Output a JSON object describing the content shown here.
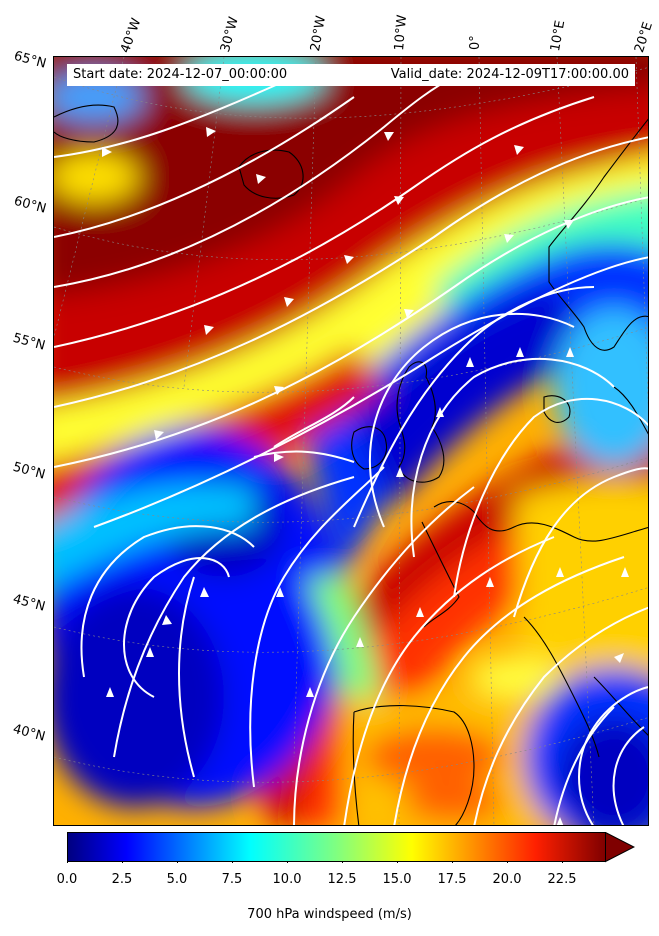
{
  "header": {
    "start_date": "Start date: 2024-12-07_00:00:00",
    "valid_date": "Valid_date: 2024-12-09T17:00:00.00"
  },
  "graticule": {
    "longitude_labels": [
      "40°W",
      "30°W",
      "20°W",
      "10°W",
      "0°",
      "10°E",
      "20°E"
    ],
    "latitude_labels": [
      "65°N",
      "60°N",
      "55°N",
      "50°N",
      "45°N",
      "40°N"
    ]
  },
  "colorbar": {
    "label": "700 hPa windspeed (m/s)",
    "ticks": [
      "0.0",
      "2.5",
      "5.0",
      "7.5",
      "10.0",
      "12.5",
      "15.0",
      "17.5",
      "20.0",
      "22.5"
    ],
    "min": 0,
    "max": 25,
    "extend": "max",
    "colormap": "jet"
  },
  "field": {
    "variable": "700 hPa windspeed",
    "units": "m/s",
    "overlay": "white streamlines",
    "coastlines_color": "#000000"
  },
  "colors": {
    "dark_blue": "#00008f",
    "blue": "#0000ff",
    "cyan": "#00ffff",
    "yellow": "#ffff00",
    "red": "#ff0000",
    "dark_red": "#800000",
    "streamline": "#ffffff"
  }
}
